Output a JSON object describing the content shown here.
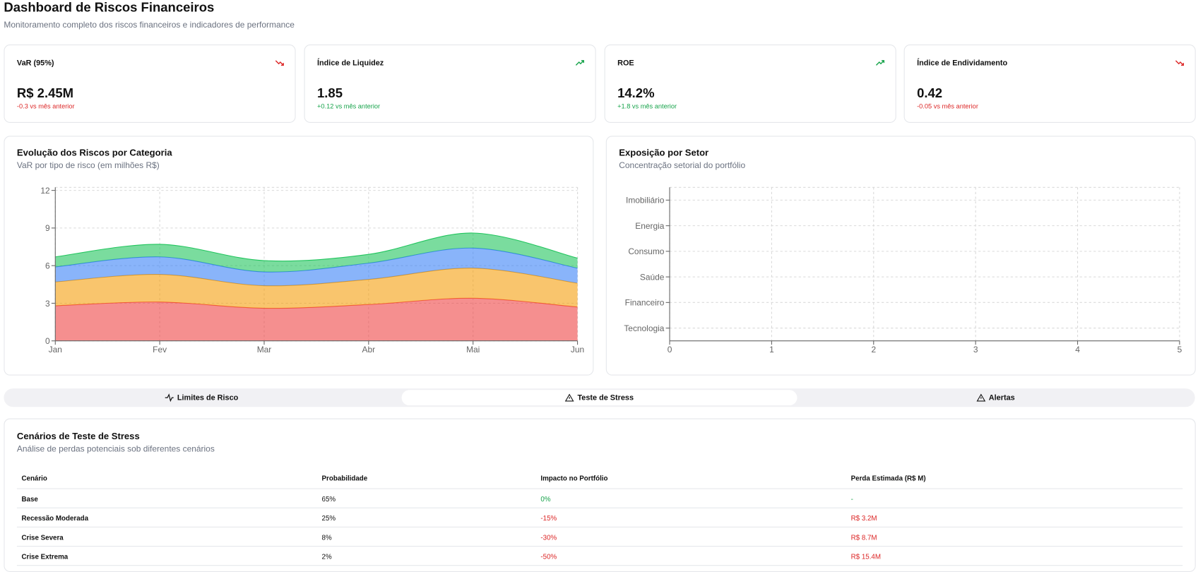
{
  "header": {
    "title": "Dashboard de Riscos Financeiros",
    "subtitle": "Monitoramento completo dos riscos financeiros e indicadores de performance"
  },
  "kpis": [
    {
      "label": "VaR (95%)",
      "value": "R$ 2.45M",
      "change": "-0.3 vs mês anterior",
      "color": "#dc2626"
    },
    {
      "label": "Índice de Liquidez",
      "value": "1.85",
      "change": "+0.12 vs mês anterior",
      "color": "#16a34a"
    },
    {
      "label": "ROE",
      "value": "14.2%",
      "change": "+1.8 vs mês anterior",
      "color": "#16a34a"
    },
    {
      "label": "Índice de Endividamento",
      "value": "0.42",
      "change": "-0.05 vs mês anterior",
      "color": "#dc2626"
    }
  ],
  "risk_chart": {
    "type": "area",
    "stacked": true,
    "title": "Evolução dos Riscos por Categoria",
    "subtitle": "VaR por tipo de risco (em milhões R$)",
    "categories": [
      "Jan",
      "Fev",
      "Mar",
      "Abr",
      "Mai",
      "Jun"
    ],
    "series": [
      {
        "color": "#ef4444",
        "values": [
          2.8,
          3.1,
          2.6,
          2.9,
          3.4,
          2.7
        ]
      },
      {
        "color": "#f59e0b",
        "values": [
          1.9,
          2.2,
          1.8,
          2.0,
          2.4,
          1.9
        ]
      },
      {
        "color": "#3b82f6",
        "values": [
          1.2,
          1.4,
          1.1,
          1.3,
          1.6,
          1.2
        ]
      },
      {
        "color": "#22c55e",
        "values": [
          0.8,
          1.0,
          0.9,
          0.7,
          1.2,
          0.8
        ]
      }
    ],
    "ylim": [
      0,
      12
    ],
    "yticks": [
      0,
      3,
      6,
      9,
      12
    ],
    "grid": true
  },
  "sector_chart": {
    "type": "bar",
    "orientation": "horizontal",
    "title": "Exposição por Setor",
    "subtitle": "Concentração setorial do portfólio",
    "categories": [
      "Imobiliário",
      "Energia",
      "Consumo",
      "Saúde",
      "Financeiro",
      "Tecnologia"
    ],
    "xlim": [
      0,
      5
    ],
    "xticks": [
      0,
      1,
      2,
      3,
      4,
      5
    ],
    "grid": true
  },
  "tabs": {
    "items": [
      "Limites de Risco",
      "Teste de Stress",
      "Alertas"
    ],
    "active": 1
  },
  "stress_table": {
    "title": "Cenários de Teste de Stress",
    "subtitle": "Análise de perdas potenciais sob diferentes cenários",
    "columns": [
      "Cenário",
      "Probabilidade",
      "Impacto no Portfólio",
      "Perda Estimada (R$ M)"
    ],
    "rows": [
      [
        "Base",
        "65%",
        "0%",
        "-"
      ],
      [
        "Recessão Moderada",
        "25%",
        "-15%",
        "R$ 3.2M"
      ],
      [
        "Crise Severa",
        "8%",
        "-30%",
        "R$ 8.7M"
      ],
      [
        "Crise Extrema",
        "2%",
        "-50%",
        "R$ 15.4M"
      ]
    ]
  }
}
